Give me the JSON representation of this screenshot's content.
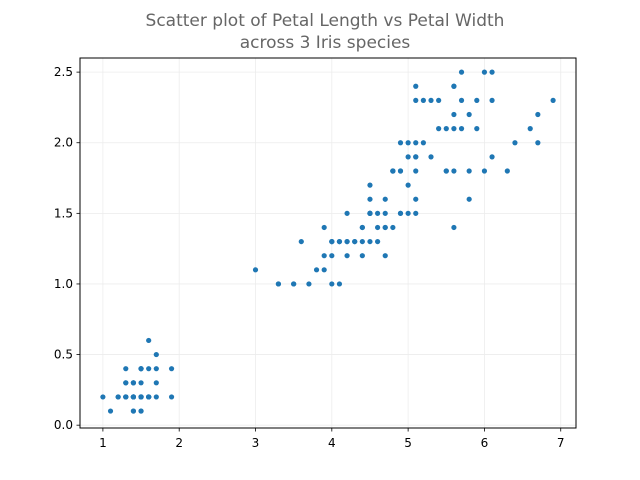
{
  "chart_data": {
    "type": "scatter",
    "title_lines": [
      "Scatter plot of Petal Length vs Petal Width",
      "across 3 Iris species"
    ],
    "xlabel": "",
    "ylabel": "",
    "xlim": [
      0.7,
      7.2
    ],
    "ylim": [
      -0.02,
      2.6
    ],
    "xticks": [
      1,
      2,
      3,
      4,
      5,
      6,
      7
    ],
    "xtick_labels": [
      "1",
      "2",
      "3",
      "4",
      "5",
      "6",
      "7"
    ],
    "yticks": [
      0.0,
      0.5,
      1.0,
      1.5,
      2.0,
      2.5
    ],
    "ytick_labels": [
      "0.0",
      "0.5",
      "1.0",
      "1.5",
      "2.0",
      "2.5"
    ],
    "grid": true,
    "marker_color": "#1f77b4",
    "series": [
      {
        "x": [
          1.4,
          1.4,
          1.3,
          1.5,
          1.4,
          1.7,
          1.4,
          1.5,
          1.4,
          1.5,
          1.5,
          1.6,
          1.4,
          1.1,
          1.2,
          1.5,
          1.3,
          1.4,
          1.7,
          1.5,
          1.7,
          1.5,
          1.0,
          1.7,
          1.9,
          1.6,
          1.6,
          1.5,
          1.4,
          1.6,
          1.6,
          1.5,
          1.5,
          1.4,
          1.5,
          1.2,
          1.3,
          1.4,
          1.3,
          1.5,
          1.3,
          1.3,
          1.3,
          1.6,
          1.9,
          1.4,
          1.6,
          1.4,
          1.5,
          1.4,
          4.7,
          4.5,
          4.9,
          4.0,
          4.6,
          4.5,
          4.7,
          3.3,
          4.6,
          3.9,
          3.5,
          4.2,
          4.0,
          4.7,
          3.6,
          4.4,
          4.5,
          4.1,
          4.5,
          3.9,
          4.8,
          4.0,
          4.9,
          4.7,
          4.3,
          4.4,
          4.8,
          5.0,
          4.5,
          3.5,
          3.8,
          3.7,
          3.9,
          5.1,
          4.5,
          4.5,
          4.7,
          4.4,
          4.1,
          4.0,
          4.4,
          4.6,
          4.0,
          3.3,
          4.2,
          4.2,
          4.2,
          4.3,
          3.0,
          4.1,
          6.0,
          5.1,
          5.9,
          5.6,
          5.8,
          6.6,
          4.5,
          6.3,
          5.8,
          6.1,
          5.1,
          5.3,
          5.5,
          5.0,
          5.1,
          5.3,
          5.5,
          6.7,
          6.9,
          5.0,
          5.7,
          4.9,
          6.7,
          4.9,
          5.7,
          6.0,
          4.8,
          4.9,
          5.6,
          5.8,
          6.1,
          6.4,
          5.6,
          5.1,
          5.6,
          6.1,
          5.6,
          5.5,
          4.8,
          5.4,
          5.6,
          5.1,
          5.1,
          5.9,
          5.7,
          5.2,
          5.0,
          5.2,
          5.4,
          5.1
        ],
        "y": [
          0.2,
          0.2,
          0.2,
          0.2,
          0.2,
          0.4,
          0.3,
          0.2,
          0.2,
          0.1,
          0.2,
          0.2,
          0.1,
          0.1,
          0.2,
          0.4,
          0.4,
          0.3,
          0.3,
          0.3,
          0.2,
          0.4,
          0.2,
          0.5,
          0.2,
          0.2,
          0.4,
          0.2,
          0.2,
          0.2,
          0.2,
          0.4,
          0.1,
          0.2,
          0.2,
          0.2,
          0.2,
          0.1,
          0.2,
          0.2,
          0.3,
          0.3,
          0.2,
          0.6,
          0.4,
          0.3,
          0.2,
          0.2,
          0.2,
          0.2,
          1.4,
          1.5,
          1.5,
          1.3,
          1.5,
          1.3,
          1.6,
          1.0,
          1.3,
          1.4,
          1.0,
          1.5,
          1.0,
          1.4,
          1.3,
          1.4,
          1.5,
          1.0,
          1.5,
          1.1,
          1.8,
          1.3,
          1.5,
          1.2,
          1.3,
          1.4,
          1.4,
          1.7,
          1.5,
          1.0,
          1.1,
          1.0,
          1.2,
          1.6,
          1.5,
          1.6,
          1.5,
          1.3,
          1.3,
          1.3,
          1.2,
          1.4,
          1.2,
          1.0,
          1.3,
          1.2,
          1.3,
          1.3,
          1.1,
          1.3,
          2.5,
          1.9,
          2.1,
          1.8,
          2.2,
          2.1,
          1.7,
          1.8,
          1.8,
          2.5,
          2.0,
          1.9,
          2.1,
          2.0,
          2.4,
          2.3,
          1.8,
          2.2,
          2.3,
          1.5,
          2.3,
          2.0,
          2.0,
          1.8,
          2.1,
          1.8,
          1.8,
          1.8,
          2.1,
          1.6,
          1.9,
          2.0,
          2.2,
          1.5,
          1.4,
          2.3,
          2.4,
          1.8,
          1.8,
          2.1,
          2.4,
          2.3,
          1.9,
          2.3,
          2.5,
          2.3,
          1.9,
          2.0,
          2.3,
          1.8
        ]
      }
    ]
  }
}
